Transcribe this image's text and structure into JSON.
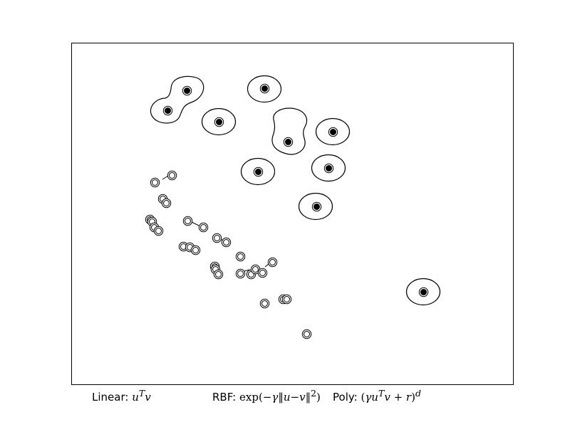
{
  "chart_data": {
    "type": "scatter",
    "title": "",
    "xlabel": "",
    "ylabel": "",
    "xlim": [
      0,
      620
    ],
    "ylim": [
      0,
      480
    ],
    "axes_ticks": "none",
    "grid": false,
    "series": [
      {
        "marker": "filled-black",
        "points": [
          [
            162,
            413
          ],
          [
            135,
            385
          ],
          [
            271,
            416
          ],
          [
            207,
            369
          ],
          [
            304,
            341
          ],
          [
            367,
            355
          ],
          [
            262,
            299
          ],
          [
            361,
            304
          ],
          [
            344,
            250
          ],
          [
            494,
            130
          ]
        ]
      },
      {
        "marker": "open-white",
        "points": [
          [
            141,
            294
          ],
          [
            117,
            284
          ],
          [
            128,
            261
          ],
          [
            133,
            255
          ],
          [
            110,
            232
          ],
          [
            113,
            229
          ],
          [
            116,
            221
          ],
          [
            122,
            216
          ],
          [
            163,
            230
          ],
          [
            185,
            221
          ],
          [
            204,
            206
          ],
          [
            217,
            200
          ],
          [
            157,
            194
          ],
          [
            166,
            193
          ],
          [
            174,
            189
          ],
          [
            237,
            180
          ],
          [
            282,
            172
          ],
          [
            201,
            166
          ],
          [
            202,
            162
          ],
          [
            206,
            155
          ],
          [
            237,
            156
          ],
          [
            252,
            155
          ],
          [
            258,
            162
          ],
          [
            268,
            157
          ],
          [
            297,
            120
          ],
          [
            302,
            120
          ],
          [
            271,
            114
          ],
          [
            330,
            71
          ]
        ]
      }
    ]
  },
  "legend": {
    "linear": {
      "prefix": "Linear: ",
      "formula": "u^T v"
    },
    "rbf": {
      "prefix": "RBF: ",
      "formula": "exp(−γ‖u−v‖²)"
    },
    "poly": {
      "prefix": "Poly: ",
      "formula": "(γ u^T v + r)^d"
    }
  }
}
